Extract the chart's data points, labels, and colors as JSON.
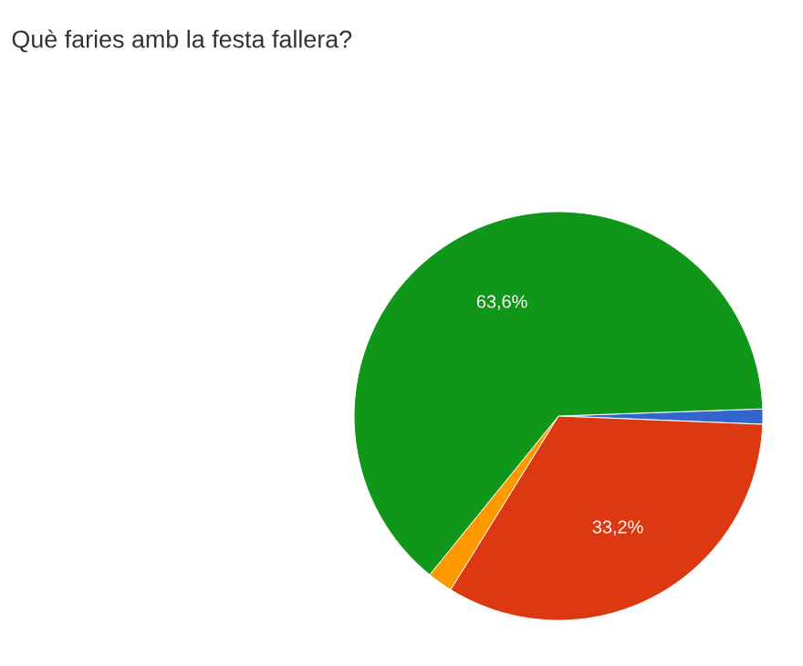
{
  "chart_data": {
    "type": "pie",
    "title": "Què faries amb la festa fallera?",
    "categories": [
      null,
      null,
      null,
      null
    ],
    "values": [
      1.2,
      33.2,
      2.0,
      63.6
    ],
    "colors": [
      "#3366cc",
      "#dc3912",
      "#ff9900",
      "#109618"
    ],
    "value_labels": [
      null,
      "33,2%",
      null,
      "63,6%"
    ]
  }
}
